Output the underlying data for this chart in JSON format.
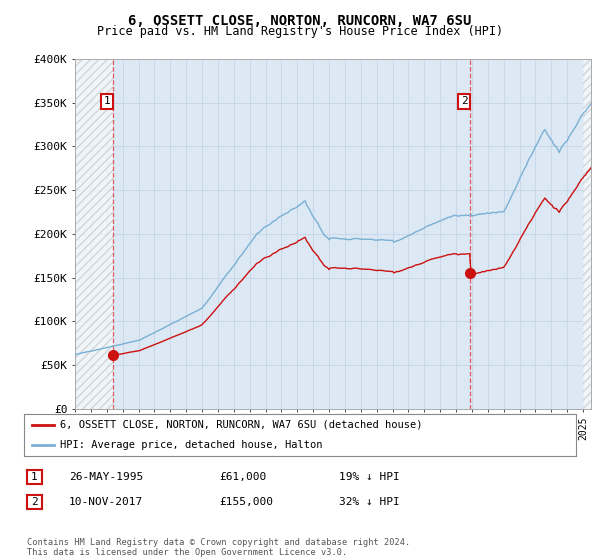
{
  "title": "6, OSSETT CLOSE, NORTON, RUNCORN, WA7 6SU",
  "subtitle": "Price paid vs. HM Land Registry's House Price Index (HPI)",
  "ylim": [
    0,
    400000
  ],
  "yticks": [
    0,
    50000,
    100000,
    150000,
    200000,
    250000,
    300000,
    350000,
    400000
  ],
  "ytick_labels": [
    "£0",
    "£50K",
    "£100K",
    "£150K",
    "£200K",
    "£250K",
    "£300K",
    "£350K",
    "£400K"
  ],
  "hpi_color": "#7ab0d4",
  "price_color": "#cc1111",
  "grid_color": "#c8d8e8",
  "plot_bg_color": "#dce8f4",
  "sale1_date": 1995.396,
  "sale1_price": 61000,
  "sale2_date": 2017.872,
  "sale2_price": 155000,
  "legend_label1": "6, OSSETT CLOSE, NORTON, RUNCORN, WA7 6SU (detached house)",
  "legend_label2": "HPI: Average price, detached house, Halton",
  "note1_num": "1",
  "note1_date": "26-MAY-1995",
  "note1_price": "£61,000",
  "note1_hpi": "19% ↓ HPI",
  "note2_num": "2",
  "note2_date": "10-NOV-2017",
  "note2_price": "£155,000",
  "note2_hpi": "32% ↓ HPI",
  "footer": "Contains HM Land Registry data © Crown copyright and database right 2024.\nThis data is licensed under the Open Government Licence v3.0.",
  "xmin": 1993.0,
  "xmax": 2025.5
}
